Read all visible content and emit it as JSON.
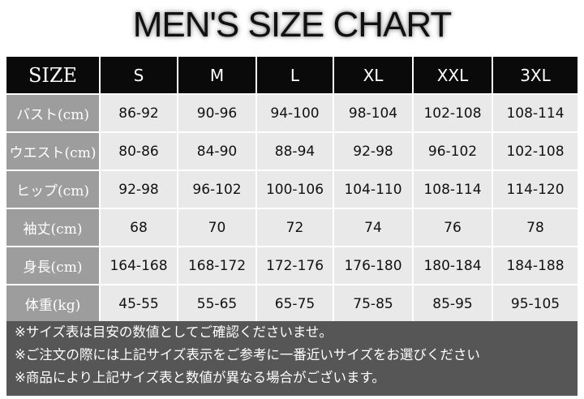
{
  "header": {
    "title": "MEN'S SIZE CHART"
  },
  "table": {
    "columns": [
      "SIZE",
      "S",
      "M",
      "L",
      "XL",
      "XXL",
      "3XL"
    ],
    "rows": [
      [
        "バスト(cm)",
        "86-92",
        "90-96",
        "94-100",
        "98-104",
        "102-108",
        "108-114"
      ],
      [
        "ウエスト(cm)",
        "80-86",
        "84-90",
        "88-94",
        "92-98",
        "96-102",
        "102-108"
      ],
      [
        "ヒップ(cm)",
        "92-98",
        "96-102",
        "100-106",
        "104-110",
        "108-114",
        "114-120"
      ],
      [
        "袖丈(cm)",
        "68",
        "70",
        "72",
        "74",
        "76",
        "78"
      ],
      [
        "身長(cm)",
        "164-168",
        "168-172",
        "172-176",
        "176-180",
        "180-184",
        "184-188"
      ],
      [
        "体重(kg)",
        "45-55",
        "55-65",
        "65-75",
        "75-85",
        "85-95",
        "95-105"
      ]
    ]
  },
  "notes": [
    "※サイズ表は目安の数値としてご確認くださいませ。",
    "※ご注文の際には上記サイズ表示をご参考に一番近いサイズをお選びください",
    "※商品により上記サイズ表と数値が異なる場合がございます。"
  ]
}
